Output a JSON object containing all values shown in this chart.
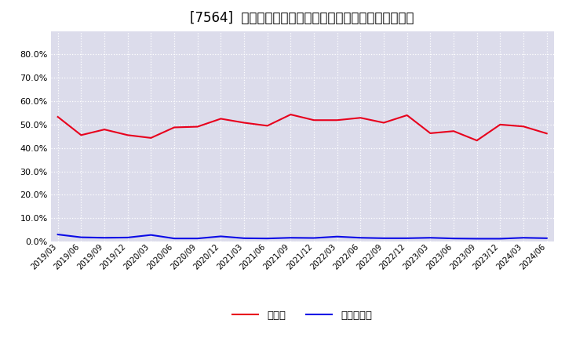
{
  "title": "[7564]  現預金、有利子負債の総資産に対する比率の推移",
  "x_labels": [
    "2019/03",
    "2019/06",
    "2019/09",
    "2019/12",
    "2020/03",
    "2020/06",
    "2020/09",
    "2020/12",
    "2021/03",
    "2021/06",
    "2021/09",
    "2021/12",
    "2022/03",
    "2022/06",
    "2022/09",
    "2022/12",
    "2023/03",
    "2023/06",
    "2023/09",
    "2023/12",
    "2024/03",
    "2024/06"
  ],
  "cash": [
    0.533,
    0.455,
    0.479,
    0.455,
    0.443,
    0.488,
    0.491,
    0.525,
    0.508,
    0.495,
    0.543,
    0.519,
    0.519,
    0.529,
    0.508,
    0.54,
    0.463,
    0.472,
    0.432,
    0.5,
    0.492,
    0.462
  ],
  "debt": [
    0.03,
    0.018,
    0.016,
    0.017,
    0.028,
    0.013,
    0.013,
    0.022,
    0.014,
    0.013,
    0.016,
    0.015,
    0.021,
    0.016,
    0.014,
    0.014,
    0.016,
    0.013,
    0.012,
    0.012,
    0.016,
    0.014
  ],
  "cash_color": "#e8001c",
  "debt_color": "#0b0be6",
  "ylim": [
    0.0,
    0.9
  ],
  "yticks": [
    0.0,
    0.1,
    0.2,
    0.3,
    0.4,
    0.5,
    0.6,
    0.7,
    0.8
  ],
  "legend_cash": "現預金",
  "legend_debt": "有利子負債",
  "bg_color": "#ffffff",
  "plot_bg_color": "#dcdceb",
  "grid_color": "#ffffff",
  "title_fontsize": 12
}
